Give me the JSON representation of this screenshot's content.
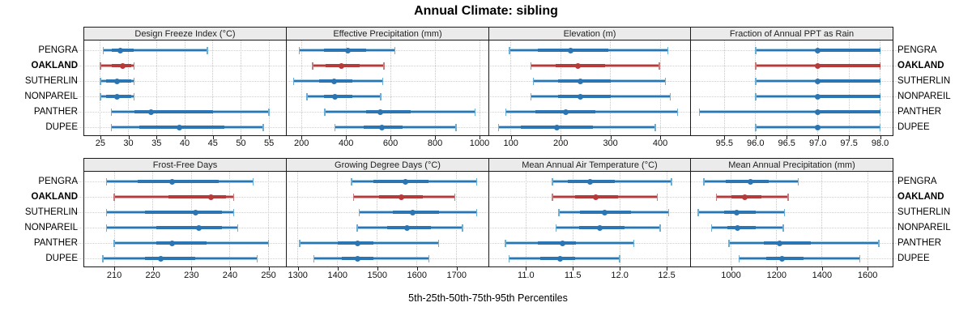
{
  "title": "Annual Climate: sibling",
  "xlabel": "5th-25th-50th-75th-95th Percentiles",
  "categories": [
    "PENGRA",
    "OAKLAND",
    "SUTHERLIN",
    "NONPAREIL",
    "PANTHER",
    "DUPEE"
  ],
  "highlighted_category": "OAKLAND",
  "colors": {
    "series_main": "#2b76b2",
    "series_band": "#9ecae1",
    "series_cap": "#6baed6",
    "highlight_main": "#b53a3a",
    "highlight_band": "#dfa5a5",
    "highlight_cap": "#c97b7d",
    "strip_bg": "#ebebeb",
    "grid": "#c9c9c9",
    "panel_border": "#1a1a1a"
  },
  "chart_data": {
    "type": "dotplot-percentile-intervals",
    "percentile_levels": [
      5,
      25,
      50,
      75,
      95
    ],
    "legend_note": "whisker caps = 5th/95th, thick band = 25th-75th, dot = median",
    "categories": [
      "PENGRA",
      "OAKLAND",
      "SUTHERLIN",
      "NONPAREIL",
      "PANTHER",
      "DUPEE"
    ],
    "panels": [
      {
        "title": "Design Freeze Index (°C)",
        "row": 0,
        "col": 0,
        "xlim": [
          22,
          58
        ],
        "ticks": [
          25,
          30,
          35,
          40,
          45,
          50,
          55
        ],
        "tick_labels": [
          "25",
          "30",
          "35",
          "40",
          "45",
          "50",
          "55"
        ],
        "values": [
          [
            25.5,
            27,
            28.5,
            31,
            44
          ],
          [
            25,
            27,
            29,
            30.5,
            31
          ],
          [
            25,
            26,
            28,
            30.5,
            31
          ],
          [
            25,
            26,
            28,
            30.5,
            31
          ],
          [
            27,
            31,
            34,
            45,
            55
          ],
          [
            27,
            32,
            39,
            47,
            54
          ]
        ]
      },
      {
        "title": "Effective Precipitation (mm)",
        "row": 0,
        "col": 1,
        "xlim": [
          130,
          1040
        ],
        "ticks": [
          200,
          400,
          600,
          800,
          1000
        ],
        "tick_labels": [
          "200",
          "400",
          "600",
          "800",
          "1000"
        ],
        "values": [
          [
            190,
            300,
            410,
            490,
            620
          ],
          [
            250,
            310,
            380,
            460,
            570
          ],
          [
            165,
            280,
            345,
            430,
            565
          ],
          [
            225,
            300,
            350,
            430,
            555
          ],
          [
            305,
            490,
            555,
            690,
            980
          ],
          [
            350,
            480,
            560,
            655,
            895
          ]
        ]
      },
      {
        "title": "Elevation (m)",
        "row": 0,
        "col": 2,
        "xlim": [
          55,
          460
        ],
        "ticks": [
          100,
          200,
          300,
          400
        ],
        "tick_labels": [
          "100",
          "200",
          "300",
          "400"
        ],
        "values": [
          [
            97,
            155,
            220,
            295,
            415
          ],
          [
            140,
            190,
            235,
            290,
            398
          ],
          [
            145,
            195,
            240,
            300,
            410
          ],
          [
            140,
            195,
            240,
            300,
            420
          ],
          [
            90,
            150,
            210,
            270,
            435
          ],
          [
            75,
            120,
            192,
            265,
            390
          ]
        ]
      },
      {
        "title": "Fraction of Annual PPT as Rain",
        "row": 0,
        "col": 3,
        "xlim": [
          94.95,
          98.2
        ],
        "ticks": [
          95.5,
          96.0,
          96.5,
          97.0,
          97.5,
          98.0
        ],
        "tick_labels": [
          "95.5",
          "96.0",
          "96.5",
          "97.0",
          "97.5",
          "98.0"
        ],
        "values": [
          [
            96,
            97,
            97,
            98,
            98
          ],
          [
            96,
            97,
            97,
            98,
            98
          ],
          [
            96,
            97,
            97,
            98,
            98
          ],
          [
            96,
            97,
            97,
            98,
            98
          ],
          [
            95.1,
            97,
            97,
            98,
            98
          ],
          [
            96,
            97,
            97,
            97,
            98
          ]
        ]
      },
      {
        "title": "Frost-Free Days",
        "row": 1,
        "col": 0,
        "xlim": [
          202,
          254.5
        ],
        "ticks": [
          210,
          220,
          230,
          240,
          250
        ],
        "tick_labels": [
          "210",
          "220",
          "230",
          "240",
          "250"
        ],
        "values": [
          [
            208,
            216,
            225,
            237,
            246
          ],
          [
            210,
            224,
            235,
            239,
            241
          ],
          [
            208,
            218,
            231,
            238,
            241
          ],
          [
            208,
            221,
            232,
            238,
            242
          ],
          [
            210,
            221,
            225,
            234,
            250
          ],
          [
            207,
            218,
            222,
            231,
            247
          ]
        ]
      },
      {
        "title": "Growing Degree Days (°C)",
        "row": 1,
        "col": 1,
        "xlim": [
          1270,
          1780
        ],
        "ticks": [
          1300,
          1400,
          1500,
          1600,
          1700
        ],
        "tick_labels": [
          "1300",
          "1400",
          "1500",
          "1600",
          "1700"
        ],
        "values": [
          [
            1435,
            1490,
            1570,
            1630,
            1750
          ],
          [
            1440,
            1505,
            1560,
            1615,
            1695
          ],
          [
            1455,
            1540,
            1590,
            1655,
            1750
          ],
          [
            1450,
            1525,
            1575,
            1635,
            1715
          ],
          [
            1305,
            1400,
            1450,
            1490,
            1655
          ],
          [
            1340,
            1410,
            1450,
            1490,
            1630
          ]
        ]
      },
      {
        "title": "Mean Annual Air Temperature (°C)",
        "row": 1,
        "col": 2,
        "xlim": [
          10.6,
          12.75
        ],
        "ticks": [
          11.0,
          11.5,
          12.0,
          12.5
        ],
        "tick_labels": [
          "11.0",
          "11.5",
          "12.0",
          "12.5"
        ],
        "values": [
          [
            11.28,
            11.45,
            11.68,
            11.95,
            12.55
          ],
          [
            11.28,
            11.52,
            11.74,
            11.98,
            12.4
          ],
          [
            11.35,
            11.58,
            11.84,
            12.12,
            12.52
          ],
          [
            11.32,
            11.57,
            11.79,
            12.05,
            12.43
          ],
          [
            10.78,
            11.13,
            11.39,
            11.53,
            12.15
          ],
          [
            10.82,
            11.15,
            11.36,
            11.52,
            12.0
          ]
        ]
      },
      {
        "title": "Mean Annual Precipitation (mm)",
        "row": 1,
        "col": 3,
        "xlim": [
          820,
          1710
        ],
        "ticks": [
          1000,
          1200,
          1400,
          1600
        ],
        "tick_labels": [
          "1000",
          "1200",
          "1400",
          "1600"
        ],
        "values": [
          [
            880,
            975,
            1085,
            1165,
            1295
          ],
          [
            935,
            1000,
            1060,
            1135,
            1250
          ],
          [
            855,
            970,
            1025,
            1110,
            1235
          ],
          [
            915,
            985,
            1030,
            1110,
            1230
          ],
          [
            990,
            1145,
            1215,
            1350,
            1650
          ],
          [
            1035,
            1155,
            1225,
            1320,
            1565
          ]
        ]
      }
    ]
  }
}
